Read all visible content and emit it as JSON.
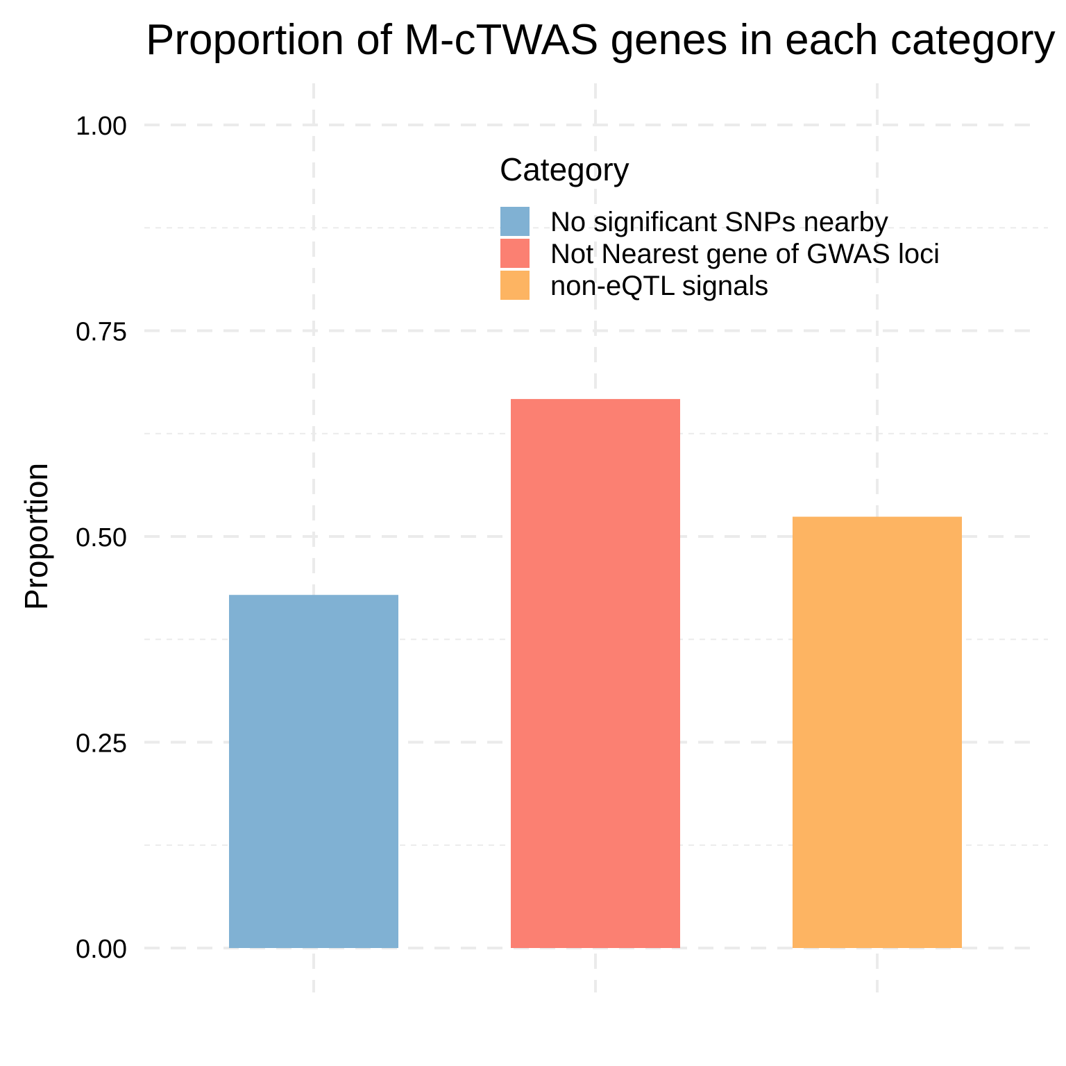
{
  "chart_data": {
    "type": "bar",
    "title": "Proportion of M-cTWAS genes in each category",
    "xlabel": "",
    "ylabel": "Proportion",
    "categories": [
      "No significant SNPs nearby",
      "Not Nearest gene of GWAS loci",
      "non-eQTL signals"
    ],
    "values": [
      0.429,
      0.667,
      0.524
    ],
    "colors": [
      "#80B1D3",
      "#FB8072",
      "#FDB462"
    ],
    "ylim": [
      0,
      1.05
    ],
    "yticks": [
      "0.00",
      "0.25",
      "0.50",
      "0.75",
      "1.00"
    ],
    "grid": true,
    "grid_style": "dashed",
    "legend": {
      "title": "Category",
      "position": "inside-top-right",
      "entries": [
        "No significant SNPs nearby",
        "Not Nearest gene of GWAS loci",
        "non-eQTL signals"
      ]
    }
  }
}
